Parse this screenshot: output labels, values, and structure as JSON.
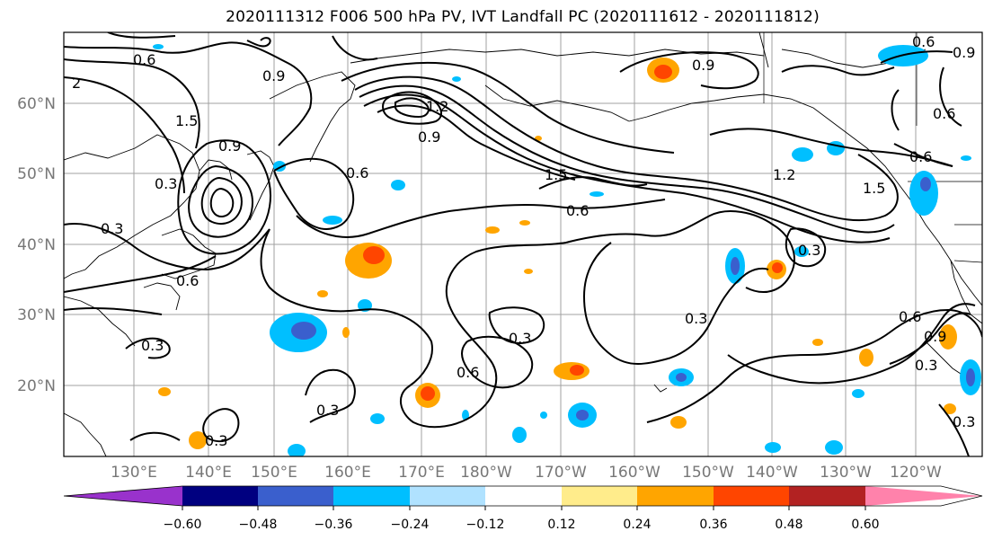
{
  "title": "2020111312 F006 500 hPa PV, IVT Landfall PC (2020111612 - 2020111812)",
  "lat_labels": [
    "60°N",
    "50°N",
    "40°N",
    "30°N",
    "20°N"
  ],
  "lon_labels": [
    "130°E",
    "140°E",
    "150°E",
    "160°E",
    "170°E",
    "180°W",
    "170°W",
    "160°W",
    "150°W",
    "140°W",
    "130°W",
    "120°W"
  ],
  "colorbar": {
    "ticks": [
      "−0.60",
      "−0.48",
      "−0.36",
      "−0.24",
      "−0.12",
      "0.12",
      "0.24",
      "0.36",
      "0.48",
      "0.60"
    ],
    "colors": [
      "#9932cc",
      "#000080",
      "#3a5fcd",
      "#00bfff",
      "#b0e2ff",
      "#ffffff",
      "#ffec8b",
      "#ffa500",
      "#ff4500",
      "#b22222",
      "#ff82ab"
    ]
  },
  "contour_labels": [
    "0.6",
    "0.9",
    "2",
    "1.5",
    "0.9",
    "0.3",
    "0.3",
    "0.6",
    "1.2",
    "0.9",
    "1.5",
    "0.6",
    "0.6",
    "1.2",
    "1.5",
    "0.9",
    "0.6",
    "0.9",
    "0.6",
    "0.3",
    "0.3",
    "0.6",
    "0.3",
    "0.3",
    "0.6",
    "0.3",
    "0.3",
    "0.6",
    "0.9",
    "0.3",
    "0.3"
  ]
}
